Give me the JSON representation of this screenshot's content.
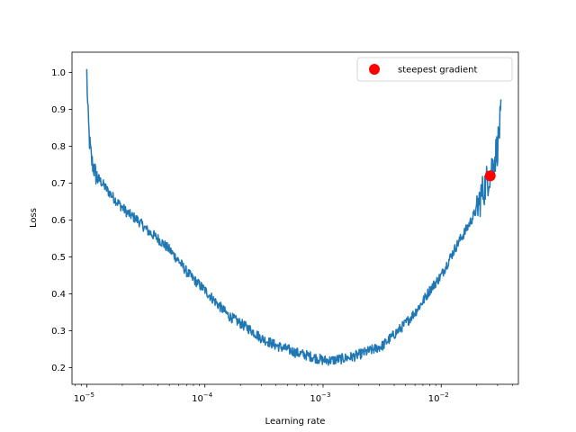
{
  "chart_data": {
    "type": "line",
    "title": "",
    "xlabel": "Learning rate",
    "ylabel": "Loss",
    "xscale": "log",
    "xlim": [
      7.5e-06,
      0.045
    ],
    "ylim": [
      0.155,
      1.055
    ],
    "grid": false,
    "legend_position": "top-right",
    "x_ticks": [
      {
        "value": 1e-05,
        "label": "10",
        "exp": "−5"
      },
      {
        "value": 0.0001,
        "label": "10",
        "exp": "−4"
      },
      {
        "value": 0.001,
        "label": "10",
        "exp": "−3"
      },
      {
        "value": 0.01,
        "label": "10",
        "exp": "−2"
      }
    ],
    "y_ticks": [
      {
        "value": 0.2,
        "label": "0.2"
      },
      {
        "value": 0.3,
        "label": "0.3"
      },
      {
        "value": 0.4,
        "label": "0.4"
      },
      {
        "value": 0.5,
        "label": "0.5"
      },
      {
        "value": 0.6,
        "label": "0.6"
      },
      {
        "value": 0.7,
        "label": "0.7"
      },
      {
        "value": 0.8,
        "label": "0.8"
      },
      {
        "value": 0.9,
        "label": "0.9"
      },
      {
        "value": 1.0,
        "label": "1.0"
      }
    ],
    "series": [
      {
        "color": "#1f77b4",
        "x": [
          1e-05,
          1.02e-05,
          1.05e-05,
          1.1e-05,
          1.2e-05,
          1.35e-05,
          1.5e-05,
          1.8e-05,
          2.2e-05,
          2.7e-05,
          3.3e-05,
          4e-05,
          5e-05,
          6e-05,
          7e-05,
          8e-05,
          0.0001,
          0.00013,
          0.00016,
          0.0002,
          0.00025,
          0.0003,
          0.0004,
          0.0005,
          0.0006,
          0.0007,
          0.0008,
          0.001,
          0.0012,
          0.0015,
          0.0018,
          0.0022,
          0.0027,
          0.0032,
          0.004,
          0.005,
          0.006,
          0.007,
          0.008,
          0.01,
          0.012,
          0.014,
          0.016,
          0.018,
          0.02,
          0.022,
          0.024,
          0.026,
          0.028,
          0.03,
          0.032
        ],
        "y": [
          1.0,
          0.9,
          0.82,
          0.76,
          0.72,
          0.7,
          0.68,
          0.65,
          0.62,
          0.6,
          0.57,
          0.55,
          0.52,
          0.49,
          0.46,
          0.44,
          0.41,
          0.37,
          0.34,
          0.32,
          0.3,
          0.28,
          0.26,
          0.25,
          0.24,
          0.235,
          0.23,
          0.22,
          0.22,
          0.225,
          0.23,
          0.24,
          0.25,
          0.26,
          0.29,
          0.32,
          0.35,
          0.38,
          0.41,
          0.45,
          0.5,
          0.54,
          0.57,
          0.6,
          0.63,
          0.67,
          0.7,
          0.73,
          0.76,
          0.8,
          0.88
        ]
      }
    ],
    "markers": [
      {
        "name": "steepest gradient",
        "x": 0.026,
        "y": 0.72,
        "color": "#ff0000"
      }
    ],
    "legend": [
      {
        "label": "steepest gradient",
        "color": "#ff0000",
        "marker": "circle"
      }
    ]
  }
}
